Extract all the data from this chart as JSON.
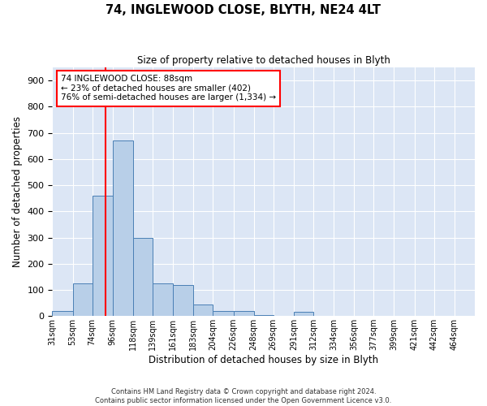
{
  "title": "74, INGLEWOOD CLOSE, BLYTH, NE24 4LT",
  "subtitle": "Size of property relative to detached houses in Blyth",
  "xlabel": "Distribution of detached houses by size in Blyth",
  "ylabel": "Number of detached properties",
  "footer_line1": "Contains HM Land Registry data © Crown copyright and database right 2024.",
  "footer_line2": "Contains public sector information licensed under the Open Government Licence v3.0.",
  "bin_labels": [
    "31sqm",
    "53sqm",
    "74sqm",
    "96sqm",
    "118sqm",
    "139sqm",
    "161sqm",
    "183sqm",
    "204sqm",
    "226sqm",
    "248sqm",
    "269sqm",
    "291sqm",
    "312sqm",
    "334sqm",
    "356sqm",
    "377sqm",
    "399sqm",
    "421sqm",
    "442sqm",
    "464sqm"
  ],
  "bin_edges": [
    31,
    53,
    74,
    96,
    118,
    139,
    161,
    183,
    204,
    226,
    248,
    269,
    291,
    312,
    334,
    356,
    377,
    399,
    421,
    442,
    464,
    486
  ],
  "bar_values": [
    20,
    125,
    460,
    670,
    300,
    125,
    120,
    45,
    20,
    20,
    5,
    0,
    15,
    0,
    0,
    0,
    0,
    0,
    0,
    0,
    0
  ],
  "bar_color": "#b8cfe8",
  "bar_edge_color": "#4a7fb5",
  "background_color": "#dce6f5",
  "grid_color": "#ffffff",
  "red_line_x": 88,
  "ylim": [
    0,
    950
  ],
  "yticks": [
    0,
    100,
    200,
    300,
    400,
    500,
    600,
    700,
    800,
    900
  ],
  "annotation_box_text_line1": "74 INGLEWOOD CLOSE: 88sqm",
  "annotation_box_text_line2": "← 23% of detached houses are smaller (402)",
  "annotation_box_text_line3": "76% of semi-detached houses are larger (1,334) →"
}
